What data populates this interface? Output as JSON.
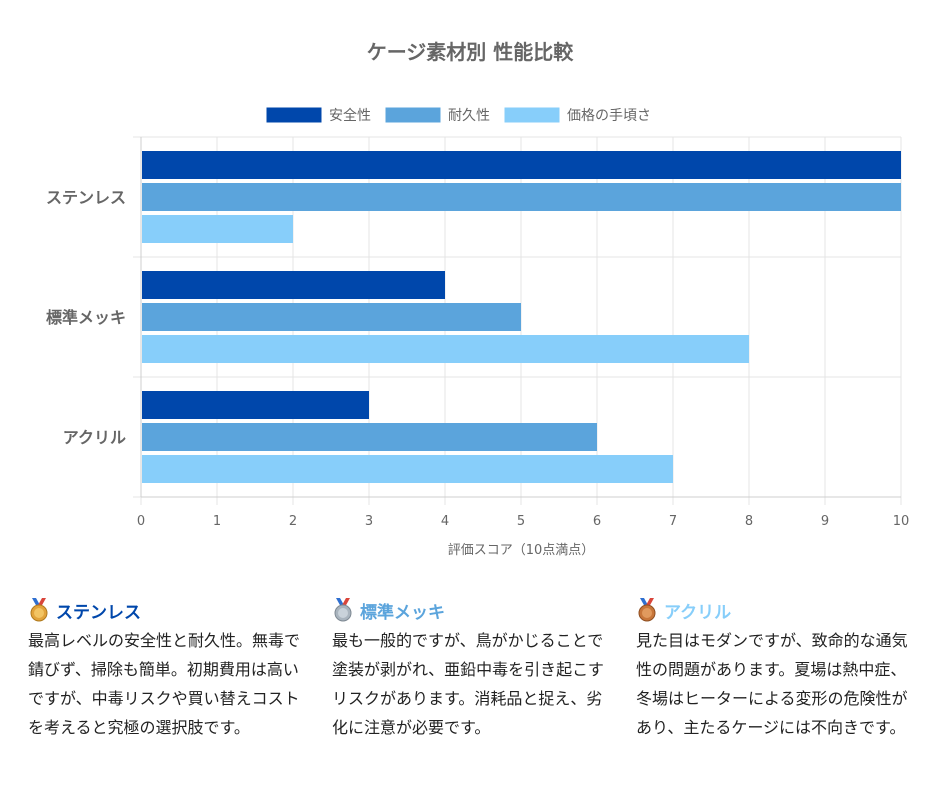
{
  "chart_data": {
    "type": "bar",
    "orientation": "horizontal",
    "title": "ケージ素材別 性能比較",
    "categories": [
      "ステンレス",
      "標準メッキ",
      "アクリル"
    ],
    "series": [
      {
        "name": "安全性",
        "color": "#0047AB",
        "values": [
          10,
          4,
          3
        ]
      },
      {
        "name": "耐久性",
        "color": "#5BA4DC",
        "values": [
          10,
          5,
          6
        ]
      },
      {
        "name": "価格の手頃さ",
        "color": "#87CEFA",
        "values": [
          2,
          8,
          7
        ]
      }
    ],
    "xlabel": "評価スコア（10点満点）",
    "ylabel": "",
    "xlim": [
      0,
      10
    ],
    "xticks": [
      "0",
      "1",
      "2",
      "3",
      "4",
      "5",
      "6",
      "7",
      "8",
      "9",
      "10"
    ],
    "legend": "top",
    "grid": true
  },
  "cards": [
    {
      "title": "ステンレス",
      "title_color": "#0047AB",
      "medal": "gold-medal-icon",
      "medal_color": "#E2A33B",
      "body": "最高レベルの安全性と耐久性。無毒で錆びず、掃除も簡単。初期費用は高いですが、中毒リスクや買い替えコストを考えると究極の選択肢です。"
    },
    {
      "title": "標準メッキ",
      "title_color": "#5BA4DC",
      "medal": "silver-medal-icon",
      "medal_color": "#A9B4BE",
      "body": "最も一般的ですが、鳥がかじることで塗装が剥がれ、亜鉛中毒を引き起こすリスクがあります。消耗品と捉え、劣化に注意が必要です。"
    },
    {
      "title": "アクリル",
      "title_color": "#87CEFA",
      "medal": "bronze-medal-icon",
      "medal_color": "#C8763A",
      "body": "見た目はモダンですが、致命的な通気性の問題があります。夏場は熱中症、冬場はヒーターによる変形の危険性があり、主たるケージには不向きです。"
    }
  ]
}
